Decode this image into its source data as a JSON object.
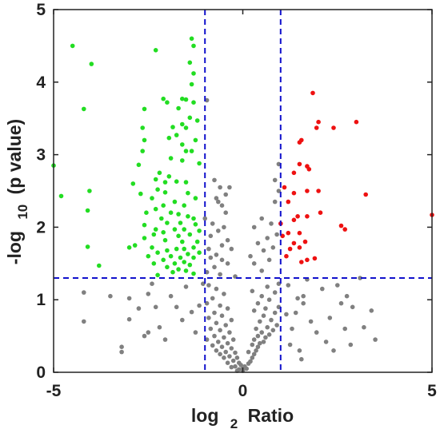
{
  "chart_data": {
    "type": "scatter",
    "title": "",
    "xlabel": {
      "main": "log",
      "sub": "2",
      "tail": "Ratio"
    },
    "ylabel": {
      "main": "-log",
      "sub": "10",
      "tail": "(p value)"
    },
    "xlim": [
      -5,
      5
    ],
    "ylim": [
      0,
      5
    ],
    "xticks": [
      -5,
      0,
      5
    ],
    "yticks": [
      0,
      1,
      2,
      3,
      4,
      5
    ],
    "grid": false,
    "thresholds": {
      "x": [
        -1,
        1
      ],
      "y": 1.3,
      "color": "#1111cc",
      "style": "dashed"
    },
    "colors": {
      "down": "#22dd22",
      "up": "#ee1111",
      "ns": "#808080",
      "axis": "#222222"
    },
    "series": [
      {
        "name": "",
        "color": "#22dd22",
        "points": [
          [
            -4.5,
            4.5
          ],
          [
            -4.0,
            4.25
          ],
          [
            -4.2,
            3.63
          ],
          [
            -5.0,
            2.85
          ],
          [
            -4.8,
            2.43
          ],
          [
            -4.05,
            2.5
          ],
          [
            -4.1,
            2.23
          ],
          [
            -4.1,
            1.73
          ],
          [
            -3.8,
            1.47
          ],
          [
            -3.0,
            1.72
          ],
          [
            -2.3,
            4.44
          ],
          [
            -1.35,
            4.6
          ],
          [
            -1.3,
            4.5
          ],
          [
            -1.4,
            4.27
          ],
          [
            -1.3,
            4.12
          ],
          [
            -1.35,
            3.97
          ],
          [
            -2.1,
            3.77
          ],
          [
            -2.0,
            3.72
          ],
          [
            -1.6,
            3.77
          ],
          [
            -1.5,
            3.76
          ],
          [
            -1.3,
            3.72
          ],
          [
            -1.7,
            3.64
          ],
          [
            -2.6,
            3.63
          ],
          [
            -1.4,
            3.51
          ],
          [
            -1.6,
            3.42
          ],
          [
            -1.85,
            3.38
          ],
          [
            -1.5,
            3.37
          ],
          [
            -2.65,
            3.37
          ],
          [
            -1.2,
            3.47
          ],
          [
            -1.75,
            3.27
          ],
          [
            -1.95,
            3.23
          ],
          [
            -2.6,
            3.2
          ],
          [
            -1.25,
            3.2
          ],
          [
            -1.6,
            3.14
          ],
          [
            -1.5,
            3.05
          ],
          [
            -1.35,
            3.05
          ],
          [
            -2.65,
            3.05
          ],
          [
            -1.9,
            2.95
          ],
          [
            -1.6,
            2.92
          ],
          [
            -1.15,
            2.88
          ],
          [
            -2.75,
            2.86
          ],
          [
            -2.2,
            2.75
          ],
          [
            -1.95,
            2.7
          ],
          [
            -2.3,
            2.66
          ],
          [
            -2.05,
            2.62
          ],
          [
            -1.75,
            2.63
          ],
          [
            -1.5,
            2.62
          ],
          [
            -2.9,
            2.6
          ],
          [
            -2.25,
            2.52
          ],
          [
            -2.05,
            2.48
          ],
          [
            -1.45,
            2.47
          ],
          [
            -2.7,
            2.46
          ],
          [
            -2.4,
            2.4
          ],
          [
            -1.25,
            2.4
          ],
          [
            -1.8,
            2.35
          ],
          [
            -2.1,
            2.3
          ],
          [
            -1.55,
            2.3
          ],
          [
            -2.3,
            2.25
          ],
          [
            -1.9,
            2.2
          ],
          [
            -2.55,
            2.2
          ],
          [
            -1.7,
            2.18
          ],
          [
            -1.45,
            2.15
          ],
          [
            -2.15,
            2.12
          ],
          [
            -1.3,
            2.12
          ],
          [
            -2.0,
            2.06
          ],
          [
            -1.65,
            2.06
          ],
          [
            -1.25,
            2.04
          ],
          [
            -2.6,
            2.03
          ],
          [
            -2.3,
            1.97
          ],
          [
            -1.8,
            1.97
          ],
          [
            -1.55,
            1.97
          ],
          [
            -2.1,
            1.93
          ],
          [
            -1.15,
            1.95
          ],
          [
            -2.35,
            1.9
          ],
          [
            -1.7,
            1.88
          ],
          [
            -1.4,
            1.9
          ],
          [
            -2.6,
            1.85
          ],
          [
            -2.05,
            1.82
          ],
          [
            -1.6,
            1.8
          ],
          [
            -1.2,
            1.8
          ],
          [
            -2.85,
            1.75
          ],
          [
            -2.4,
            1.72
          ],
          [
            -1.75,
            1.7
          ],
          [
            -1.55,
            1.7
          ],
          [
            -1.3,
            1.72
          ],
          [
            -2.0,
            1.68
          ],
          [
            -2.25,
            1.65
          ],
          [
            -1.45,
            1.63
          ],
          [
            -1.15,
            1.65
          ],
          [
            -2.5,
            1.6
          ],
          [
            -1.9,
            1.6
          ],
          [
            -1.65,
            1.58
          ],
          [
            -1.3,
            1.58
          ],
          [
            -2.1,
            1.55
          ],
          [
            -1.55,
            1.52
          ],
          [
            -1.8,
            1.5
          ],
          [
            -2.35,
            1.5
          ],
          [
            -1.4,
            1.48
          ],
          [
            -2.0,
            1.45
          ],
          [
            -1.7,
            1.42
          ],
          [
            -1.5,
            1.4
          ],
          [
            -1.85,
            1.38
          ],
          [
            -1.3,
            1.36
          ],
          [
            -2.25,
            1.34
          ]
        ]
      },
      {
        "name": "",
        "color": "#ee1111",
        "points": [
          [
            1.85,
            3.85
          ],
          [
            2.0,
            3.45
          ],
          [
            3.0,
            3.45
          ],
          [
            1.95,
            3.37
          ],
          [
            2.4,
            3.37
          ],
          [
            1.55,
            3.2
          ],
          [
            1.5,
            3.17
          ],
          [
            1.5,
            2.87
          ],
          [
            1.7,
            2.84
          ],
          [
            1.75,
            2.8
          ],
          [
            1.35,
            2.75
          ],
          [
            1.1,
            2.55
          ],
          [
            2.0,
            2.5
          ],
          [
            1.7,
            2.5
          ],
          [
            1.35,
            2.47
          ],
          [
            3.25,
            2.45
          ],
          [
            1.2,
            2.35
          ],
          [
            2.05,
            2.2
          ],
          [
            5.0,
            2.17
          ],
          [
            1.45,
            2.15
          ],
          [
            1.7,
            2.15
          ],
          [
            1.35,
            2.1
          ],
          [
            1.0,
            2.05
          ],
          [
            2.6,
            2.02
          ],
          [
            2.7,
            1.97
          ],
          [
            1.5,
            1.92
          ],
          [
            1.2,
            1.92
          ],
          [
            1.05,
            1.88
          ],
          [
            1.65,
            1.8
          ],
          [
            1.35,
            1.78
          ],
          [
            1.5,
            1.72
          ],
          [
            1.25,
            1.7
          ],
          [
            1.9,
            1.57
          ],
          [
            1.55,
            1.52
          ],
          [
            1.7,
            1.55
          ],
          [
            1.15,
            1.6
          ]
        ]
      },
      {
        "name": "",
        "color": "#808080",
        "points": [
          [
            -4.2,
            1.1
          ],
          [
            -4.2,
            0.7
          ],
          [
            -3.5,
            1.05
          ],
          [
            -3.2,
            0.35
          ],
          [
            -3.2,
            0.28
          ],
          [
            -3.0,
            1.02
          ],
          [
            -3.0,
            0.73
          ],
          [
            -2.75,
            0.88
          ],
          [
            -2.6,
            0.5
          ],
          [
            -2.5,
            0.55
          ],
          [
            -2.4,
            1.22
          ],
          [
            -2.3,
            0.9
          ],
          [
            -2.2,
            0.62
          ],
          [
            -2.05,
            0.45
          ],
          [
            -1.9,
            1.05
          ],
          [
            -1.75,
            0.9
          ],
          [
            -1.6,
            0.72
          ],
          [
            -1.5,
            1.18
          ],
          [
            -1.35,
            0.83
          ],
          [
            -1.25,
            0.55
          ],
          [
            -1.15,
            0.92
          ],
          [
            -1.05,
            1.22
          ],
          [
            -2.5,
            1.08
          ],
          [
            -1.0,
            2.12
          ],
          [
            -0.6,
            2.55
          ],
          [
            -0.45,
            2.45
          ],
          [
            -0.7,
            2.4
          ],
          [
            -0.35,
            2.55
          ],
          [
            -0.55,
            2.3
          ],
          [
            -0.95,
            3.75
          ],
          [
            -0.75,
            2.65
          ],
          [
            -0.65,
            2.35
          ],
          [
            -0.45,
            2.2
          ],
          [
            -0.8,
            2.05
          ],
          [
            -0.5,
            2.0
          ],
          [
            -0.65,
            1.95
          ],
          [
            -0.85,
            1.88
          ],
          [
            -0.4,
            1.82
          ],
          [
            -0.55,
            1.75
          ],
          [
            -0.9,
            1.7
          ],
          [
            -0.3,
            1.7
          ],
          [
            -0.7,
            1.62
          ],
          [
            -0.85,
            1.58
          ],
          [
            -0.55,
            1.55
          ],
          [
            -0.4,
            1.5
          ],
          [
            -0.75,
            1.45
          ],
          [
            -0.95,
            1.38
          ],
          [
            -0.6,
            1.35
          ],
          [
            -0.2,
            1.32
          ],
          [
            -0.9,
            1.2
          ],
          [
            -0.7,
            1.15
          ],
          [
            -0.5,
            1.08
          ],
          [
            -0.8,
            1.02
          ],
          [
            -0.95,
            0.95
          ],
          [
            -0.6,
            0.92
          ],
          [
            -0.4,
            0.88
          ],
          [
            -0.75,
            0.82
          ],
          [
            -0.55,
            0.78
          ],
          [
            -0.9,
            0.75
          ],
          [
            -0.3,
            0.72
          ],
          [
            -0.7,
            0.68
          ],
          [
            -0.45,
            0.65
          ],
          [
            -0.85,
            0.6
          ],
          [
            -0.6,
            0.58
          ],
          [
            -0.35,
            0.55
          ],
          [
            -0.75,
            0.5
          ],
          [
            -0.5,
            0.48
          ],
          [
            -0.95,
            0.45
          ],
          [
            -0.25,
            0.45
          ],
          [
            -0.65,
            0.42
          ],
          [
            -0.4,
            0.4
          ],
          [
            -0.8,
            0.37
          ],
          [
            -0.55,
            0.35
          ],
          [
            -0.3,
            0.33
          ],
          [
            -0.7,
            0.3
          ],
          [
            -0.45,
            0.28
          ],
          [
            -0.2,
            0.27
          ],
          [
            -0.6,
            0.25
          ],
          [
            -0.35,
            0.22
          ],
          [
            -0.15,
            0.2
          ],
          [
            -0.5,
            0.2
          ],
          [
            -0.25,
            0.16
          ],
          [
            -0.1,
            0.13
          ],
          [
            -0.4,
            0.13
          ],
          [
            -0.05,
            0.1
          ],
          [
            -0.2,
            0.08
          ],
          [
            -0.3,
            0.07
          ],
          [
            0.0,
            0.05
          ],
          [
            -0.1,
            0.04
          ],
          [
            0.05,
            0.08
          ],
          [
            0.1,
            0.05
          ],
          [
            0.0,
            0.02
          ],
          [
            0.15,
            0.12
          ],
          [
            -0.15,
            0.02
          ],
          [
            0.2,
            0.15
          ],
          [
            0.25,
            0.2
          ],
          [
            0.3,
            0.25
          ],
          [
            0.15,
            0.28
          ],
          [
            0.35,
            0.3
          ],
          [
            0.4,
            0.35
          ],
          [
            0.25,
            0.38
          ],
          [
            0.45,
            0.4
          ],
          [
            0.55,
            0.42
          ],
          [
            0.3,
            0.45
          ],
          [
            0.6,
            0.48
          ],
          [
            0.4,
            0.5
          ],
          [
            0.7,
            0.52
          ],
          [
            0.5,
            0.55
          ],
          [
            0.8,
            0.58
          ],
          [
            0.35,
            0.6
          ],
          [
            0.65,
            0.62
          ],
          [
            0.9,
            0.65
          ],
          [
            0.45,
            0.7
          ],
          [
            0.75,
            0.72
          ],
          [
            0.55,
            0.78
          ],
          [
            0.85,
            0.82
          ],
          [
            0.3,
            0.85
          ],
          [
            0.6,
            0.88
          ],
          [
            0.95,
            0.9
          ],
          [
            0.4,
            0.95
          ],
          [
            0.7,
            1.0
          ],
          [
            0.5,
            1.05
          ],
          [
            0.85,
            1.1
          ],
          [
            0.25,
            1.12
          ],
          [
            0.65,
            1.18
          ],
          [
            0.95,
            1.22
          ],
          [
            0.5,
            1.4
          ],
          [
            0.3,
            1.5
          ],
          [
            0.7,
            1.55
          ],
          [
            0.2,
            1.6
          ],
          [
            0.55,
            1.68
          ],
          [
            0.8,
            1.72
          ],
          [
            0.4,
            1.78
          ],
          [
            0.65,
            1.85
          ],
          [
            0.9,
            1.9
          ],
          [
            0.3,
            2.0
          ],
          [
            0.75,
            2.05
          ],
          [
            0.5,
            2.12
          ],
          [
            0.85,
            2.35
          ],
          [
            0.95,
            2.5
          ],
          [
            0.85,
            2.65
          ],
          [
            0.95,
            2.87
          ],
          [
            1.2,
            1.2
          ],
          [
            1.45,
            1.02
          ],
          [
            1.4,
            0.82
          ],
          [
            1.3,
            0.6
          ],
          [
            1.25,
            0.38
          ],
          [
            1.5,
            0.3
          ],
          [
            1.6,
            0.95
          ],
          [
            1.7,
            1.28
          ],
          [
            1.6,
            1.05
          ],
          [
            1.8,
            0.7
          ],
          [
            1.95,
            0.55
          ],
          [
            2.1,
            1.15
          ],
          [
            2.2,
            0.42
          ],
          [
            2.3,
            0.75
          ],
          [
            2.4,
            0.3
          ],
          [
            2.5,
            1.2
          ],
          [
            2.7,
            0.6
          ],
          [
            2.75,
            1.05
          ],
          [
            2.85,
            0.38
          ],
          [
            2.9,
            0.9
          ],
          [
            3.1,
            1.3
          ],
          [
            3.2,
            0.62
          ],
          [
            3.4,
            0.85
          ],
          [
            3.5,
            0.45
          ],
          [
            2.6,
            0.95
          ],
          [
            1.55,
            0.18
          ],
          [
            1.15,
            0.8
          ]
        ]
      }
    ]
  }
}
